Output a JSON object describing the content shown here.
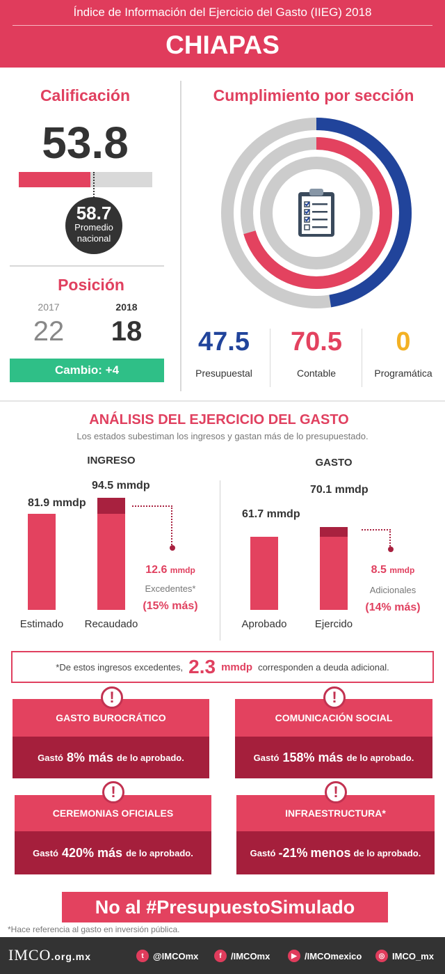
{
  "header": {
    "subtitle": "Índice de Información del Ejercicio del Gasto (IIEG) 2018",
    "state": "CHIAPAS"
  },
  "calificacion": {
    "title": "Calificación",
    "score": "53.8",
    "score_value": 53.8,
    "max_value": 100,
    "national_avg": "58.7",
    "national_label": "Promedio nacional"
  },
  "posicion": {
    "title": "Posición",
    "year_prev": "2017",
    "year_curr": "2018",
    "pos_prev": "22",
    "pos_curr": "18",
    "change": "Cambio: +4"
  },
  "cumplimiento": {
    "title": "Cumplimiento por sección",
    "sections": [
      {
        "value": "47.5",
        "label": "Presupuestal",
        "color": "#21449b",
        "pct": 47.5
      },
      {
        "value": "70.5",
        "label": "Contable",
        "color": "#e3425f",
        "pct": 70.5
      },
      {
        "value": "0",
        "label": "Programática",
        "color": "#f3b124",
        "pct": 0
      }
    ],
    "ring_bg": "#cccccc",
    "icon": "clipboard-checklist-icon"
  },
  "analisis": {
    "title": "ANÁLISIS DEL EJERCICIO DEL GASTO",
    "subtitle": "Los estados subestiman los ingresos y gastan más de lo presupuestado.",
    "ingreso": {
      "title": "INGRESO",
      "bar1_value": "81.9",
      "bar1_unit": "mmdp",
      "bar1_label": "Estimado",
      "bar2_value": "94.5",
      "bar2_unit": "mmdp",
      "bar2_label": "Recaudado",
      "excess_value": "12.6",
      "excess_unit": "mmdp",
      "excess_label": "Excedentes*",
      "excess_pct": "(15% más)"
    },
    "gasto": {
      "title": "GASTO",
      "bar1_value": "61.7",
      "bar1_unit": "mmdp",
      "bar1_label": "Aprobado",
      "bar2_value": "70.1",
      "bar2_unit": "mmdp",
      "bar2_label": "Ejercido",
      "excess_value": "8.5",
      "excess_unit": "mmdp",
      "excess_label": "Adicionales",
      "excess_pct": "(14% más)"
    }
  },
  "deuda": {
    "pre": "*De estos ingresos excedentes,",
    "value": "2.3",
    "unit": "mmdp",
    "post": "corresponden a deuda adicional."
  },
  "alerts": [
    {
      "title": "GASTO BUROCRÁTICO",
      "pre": "Gastó",
      "pct": "8%",
      "word": "más",
      "post": "de lo aprobado."
    },
    {
      "title": "COMUNICACIÓN SOCIAL",
      "pre": "Gastó",
      "pct": "158%",
      "word": "más",
      "post": "de lo aprobado."
    },
    {
      "title": "CEREMONIAS OFICIALES",
      "pre": "Gastó",
      "pct": "420%",
      "word": "más",
      "post": "de lo aprobado."
    },
    {
      "title": "INFRAESTRUCTURA*",
      "pre": "Gastó",
      "pct": "-21%",
      "word": "menos",
      "post": "de lo aprobado."
    }
  ],
  "hashtag": "No al #PresupuestoSimulado",
  "footnote": "*Hace referencia al gasto en inversión pública.",
  "footer": {
    "logo": "IMCO",
    "domain": ".org.mx",
    "links": [
      {
        "icon": "twitter-icon",
        "glyph": "t",
        "text": "@IMCOmx"
      },
      {
        "icon": "facebook-icon",
        "glyph": "f",
        "text": "/IMCOmx"
      },
      {
        "icon": "youtube-icon",
        "glyph": "▶",
        "text": "/IMCOmexico"
      },
      {
        "icon": "instagram-icon",
        "glyph": "◎",
        "text": "IMCO_mx"
      }
    ]
  }
}
